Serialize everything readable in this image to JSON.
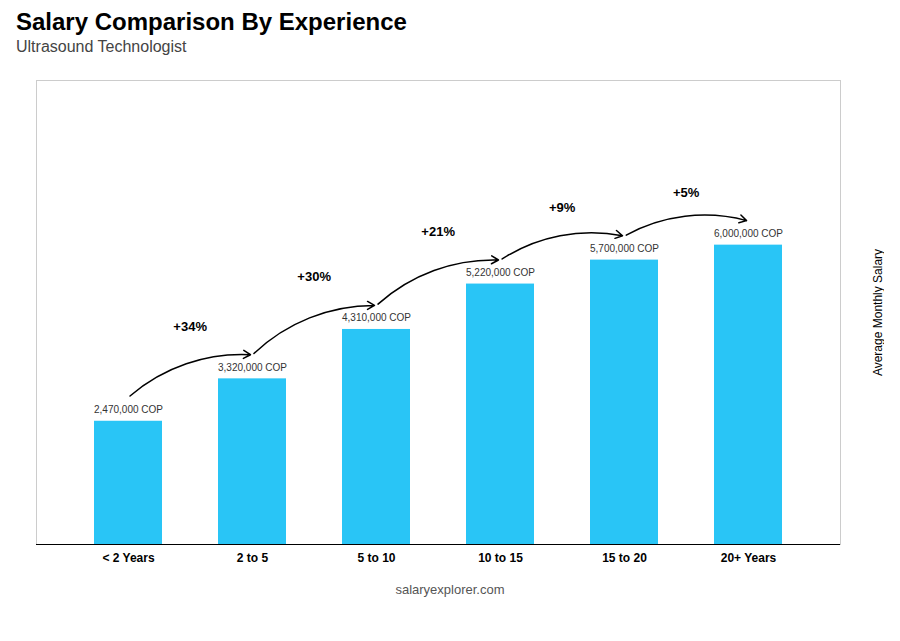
{
  "chart_data": {
    "type": "bar",
    "title": "Salary Comparison By Experience",
    "subtitle": "Ultrasound Technologist",
    "caption": "salaryexplorer.com",
    "ylabel": "Average Monthly Salary",
    "categories": [
      "< 2 Years",
      "2 to 5",
      "5 to 10",
      "10 to 15",
      "15 to 20",
      "20+ Years"
    ],
    "values": [
      2470000,
      3320000,
      4310000,
      5220000,
      5700000,
      6000000
    ],
    "value_labels": [
      "2,470,000 COP",
      "3,320,000 COP",
      "4,310,000 COP",
      "5,220,000 COP",
      "5,700,000 COP",
      "6,000,000 COP"
    ],
    "data_labels": true,
    "color": "#29c5f6",
    "ylim": [
      0,
      9300000
    ],
    "tick_labels": "x",
    "grid": false,
    "annotations": [
      {
        "text": "+34%",
        "from": "< 2 Years",
        "to": "2 to 5"
      },
      {
        "text": "+30%",
        "from": "2 to 5",
        "to": "5 to 10"
      },
      {
        "text": "+21%",
        "from": "5 to 10",
        "to": "10 to 15"
      },
      {
        "text": "+9%",
        "from": "10 to 15",
        "to": "15 to 20"
      },
      {
        "text": "+5%",
        "from": "15 to 20",
        "to": "20+ Years"
      }
    ]
  }
}
